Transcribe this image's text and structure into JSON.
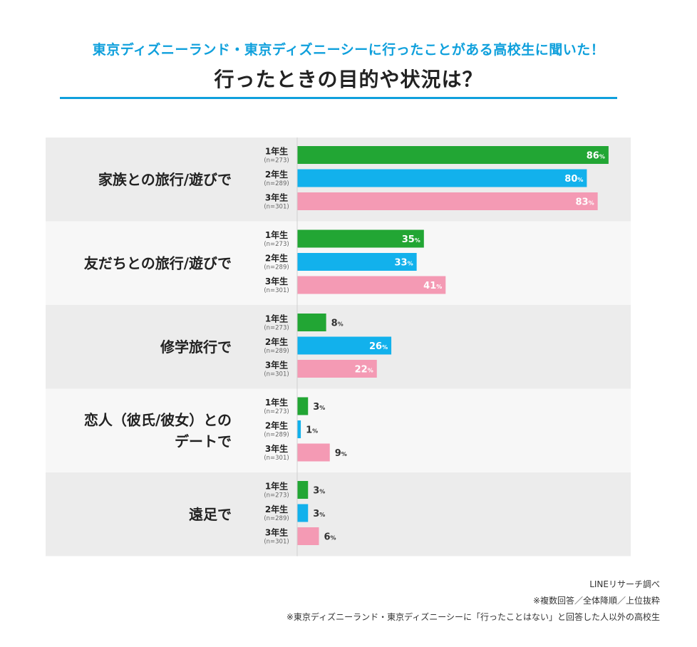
{
  "title": "東京ディズニーランド・東京ディズニーシーに行ったことがある高校生に聞いた！",
  "subtitle": "行ったときの目的や状況は？",
  "colors": {
    "accent": "#0fa0dc",
    "grade1": "#22a634",
    "grade2": "#12b1ec",
    "grade3": "#f49ab4",
    "band_dark": "#ececec",
    "band_light": "#f7f7f7"
  },
  "chart_data": {
    "type": "bar",
    "orientation": "horizontal",
    "unit": "%",
    "xlim": [
      0,
      100
    ],
    "grid": false,
    "categories": [
      "家族との旅行/遊びで",
      "友だちとの旅行/遊びで",
      "修学旅行で",
      "恋人（彼氏/彼女）との\nデートで",
      "遠足で"
    ],
    "series": [
      {
        "name": "1年生",
        "n": "(n=273)",
        "color": "#22a634",
        "values": [
          86,
          35,
          8,
          3,
          3
        ]
      },
      {
        "name": "2年生",
        "n": "(n=289)",
        "color": "#12b1ec",
        "values": [
          80,
          33,
          26,
          1,
          3
        ]
      },
      {
        "name": "3年生",
        "n": "(n=301)",
        "color": "#f49ab4",
        "values": [
          83,
          41,
          22,
          9,
          6
        ]
      }
    ]
  },
  "footnotes": [
    "LINEリサーチ調べ",
    "※複数回答／全体降順／上位抜粋",
    "※東京ディズニーランド・東京ディズニーシーに「行ったことはない」と回答した人以外の高校生"
  ]
}
